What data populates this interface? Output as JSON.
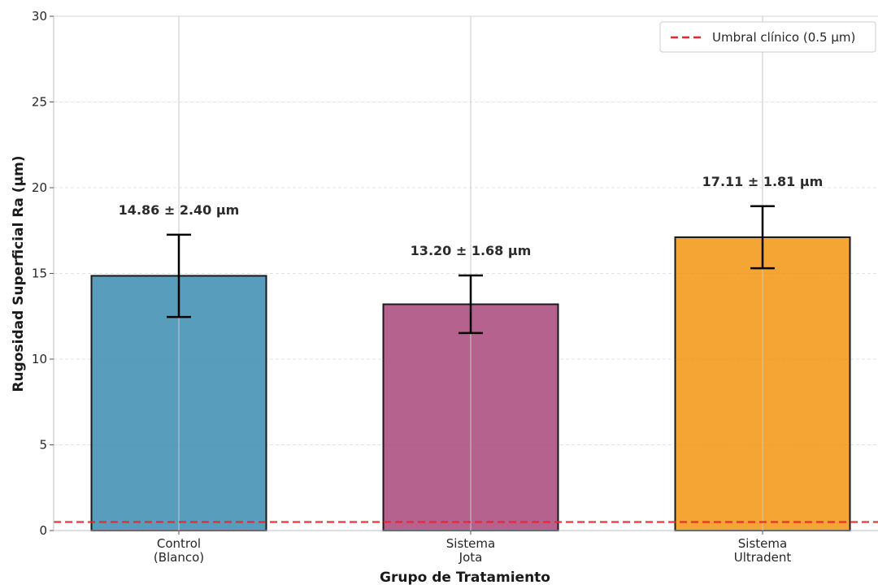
{
  "chart_data": {
    "type": "bar",
    "categories": [
      [
        "Control",
        "(Blanco)"
      ],
      [
        "Sistema",
        "Jota"
      ],
      [
        "Sistema",
        "Ultradent"
      ]
    ],
    "values": [
      14.86,
      13.2,
      17.11
    ],
    "errors": [
      2.4,
      1.68,
      1.81
    ],
    "data_labels": [
      "14.86 ± 2.40 μm",
      "13.20 ± 1.68 μm",
      "17.11 ± 1.81 μm"
    ],
    "colors": [
      "#2e86ab",
      "#a23b72",
      "#f18f01"
    ],
    "bar_edge_color": "#1a1a1a",
    "xlabel": "Grupo de Tratamiento",
    "ylabel": "Rugosidad Superficial Ra (μm)",
    "ylim": [
      0,
      30
    ],
    "yticks": [
      0,
      5,
      10,
      15,
      20,
      25,
      30
    ],
    "grid": true,
    "reference_line": {
      "value": 0.5,
      "label": "Umbral clínico (0.5 μm)",
      "color": "#e8262e",
      "style": "dashed"
    },
    "legend_position": "top-right"
  }
}
